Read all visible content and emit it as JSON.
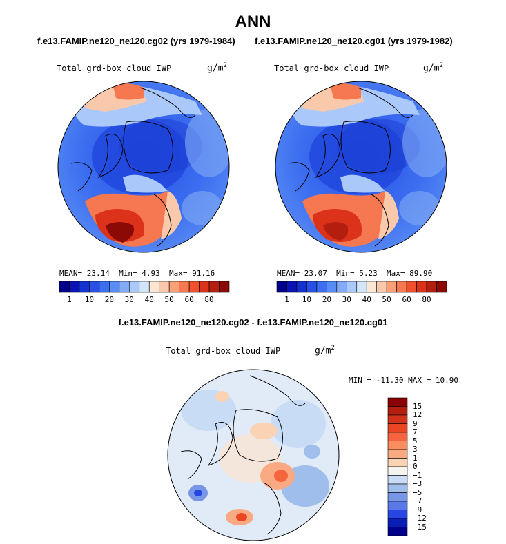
{
  "title": "ANN",
  "panels": [
    {
      "case": "f.e13.FAMIP.ne120_ne120.cg02 (yrs 1979-1984)",
      "field": "Total grd-box cloud IWP",
      "units_base": "g/m",
      "units_exp": "2",
      "stats": {
        "mean_label": "MEAN=",
        "mean": "23.14",
        "min_label": "Min=",
        "min": "4.93",
        "max_label": "Max=",
        "max": "91.16"
      }
    },
    {
      "case": "f.e13.FAMIP.ne120_ne120.cg01 (yrs 1979-1982)",
      "field": "Total grd-box cloud IWP",
      "units_base": "g/m",
      "units_exp": "2",
      "stats": {
        "mean_label": "MEAN=",
        "mean": "23.07",
        "min_label": "Min=",
        "min": "5.23",
        "max_label": "Max=",
        "max": "89.90"
      }
    }
  ],
  "colorbar": {
    "labels": [
      "1",
      "10",
      "20",
      "30",
      "40",
      "50",
      "60",
      "80"
    ],
    "colors": [
      "#00008b",
      "#0a14b4",
      "#1432d2",
      "#2850e6",
      "#3c6ef0",
      "#5a8cf5",
      "#82aaf5",
      "#aac8fa",
      "#d2e6fa",
      "#fae6d2",
      "#fac8aa",
      "#faa078",
      "#f57850",
      "#f0502d",
      "#dc3219",
      "#b41e0f",
      "#8b0a05"
    ]
  },
  "difference": {
    "title": "f.e13.FAMIP.ne120_ne120.cg02 - f.e13.FAMIP.ne120_ne120.cg01",
    "field": "Total grd-box cloud IWP",
    "units_base": "g/m",
    "units_exp": "2",
    "minmax": "MIN = -11.30 MAX =  10.90",
    "colorbar": {
      "labels": [
        "15",
        "12",
        "9",
        "7",
        "5",
        "3",
        "1",
        "0",
        "−1",
        "−3",
        "−5",
        "−7",
        "−9",
        "−12",
        "−15"
      ],
      "colors": [
        "#8b0000",
        "#b41e0f",
        "#d23219",
        "#eb4623",
        "#f5643c",
        "#fa8c5f",
        "#faaa82",
        "#fad2b4",
        "#f5f5f0",
        "#c8dcf5",
        "#a0beeb",
        "#7896e6",
        "#5a78e6",
        "#2846e1",
        "#0a1eb4",
        "#00008b"
      ]
    }
  }
}
